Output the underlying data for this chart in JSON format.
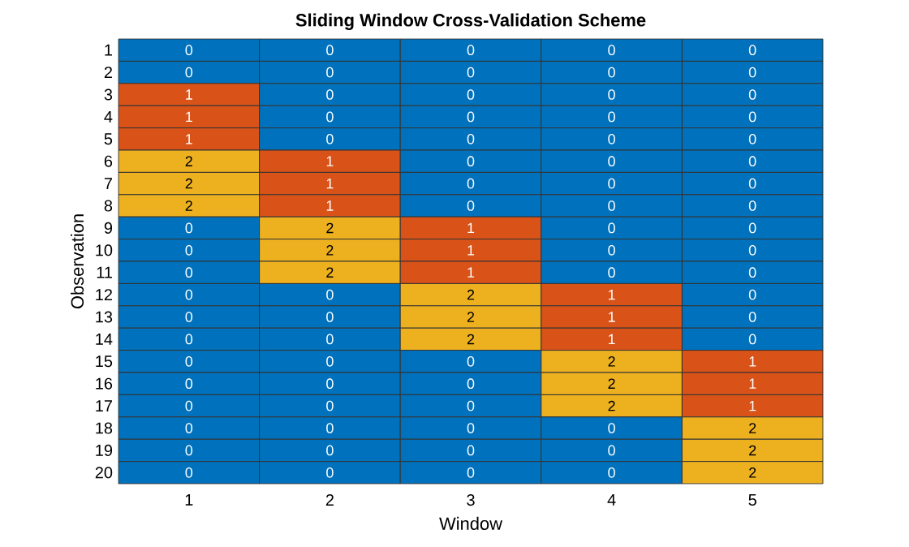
{
  "chart_data": {
    "type": "heatmap",
    "title": "Sliding Window Cross-Validation Scheme",
    "xlabel": "Window",
    "ylabel": "Observation",
    "categories": [
      "1",
      "2",
      "3",
      "4",
      "5"
    ],
    "y_categories": [
      "1",
      "2",
      "3",
      "4",
      "5",
      "6",
      "7",
      "8",
      "9",
      "10",
      "11",
      "12",
      "13",
      "14",
      "15",
      "16",
      "17",
      "18",
      "19",
      "20"
    ],
    "cells": [
      [
        0,
        0,
        0,
        0,
        0
      ],
      [
        0,
        0,
        0,
        0,
        0
      ],
      [
        1,
        0,
        0,
        0,
        0
      ],
      [
        1,
        0,
        0,
        0,
        0
      ],
      [
        1,
        0,
        0,
        0,
        0
      ],
      [
        2,
        1,
        0,
        0,
        0
      ],
      [
        2,
        1,
        0,
        0,
        0
      ],
      [
        2,
        1,
        0,
        0,
        0
      ],
      [
        0,
        2,
        1,
        0,
        0
      ],
      [
        0,
        2,
        1,
        0,
        0
      ],
      [
        0,
        2,
        1,
        0,
        0
      ],
      [
        0,
        0,
        2,
        1,
        0
      ],
      [
        0,
        0,
        2,
        1,
        0
      ],
      [
        0,
        0,
        2,
        1,
        0
      ],
      [
        0,
        0,
        0,
        2,
        1
      ],
      [
        0,
        0,
        0,
        2,
        1
      ],
      [
        0,
        0,
        0,
        2,
        1
      ],
      [
        0,
        0,
        0,
        0,
        2
      ],
      [
        0,
        0,
        0,
        0,
        2
      ],
      [
        0,
        0,
        0,
        0,
        2
      ]
    ],
    "colors": [
      "#0072bd",
      "#d95319",
      "#edb120"
    ],
    "data_labels": true
  }
}
